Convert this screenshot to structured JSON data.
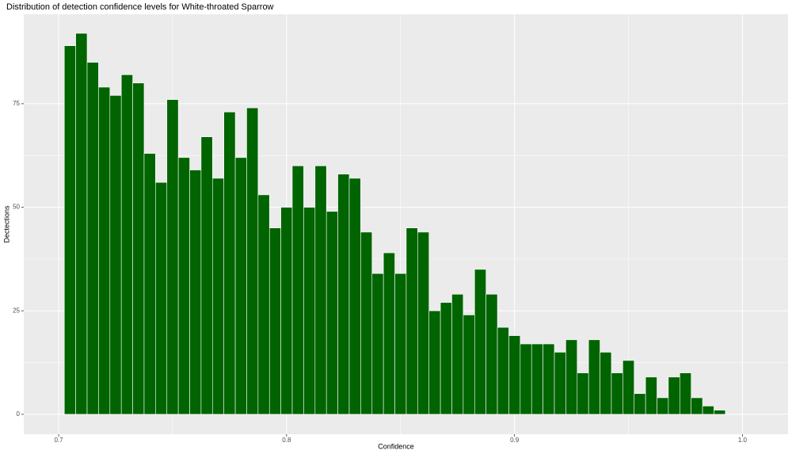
{
  "chart_data": {
    "type": "histogram",
    "title": "Distribution of detection confidence levels for White-throated Sparrow",
    "x_label": "Confidence",
    "y_label": "Dectections",
    "bins": [
      0.7025,
      0.7075,
      0.7125,
      0.7175,
      0.7225,
      0.7275,
      0.7325,
      0.7375,
      0.7425,
      0.7475,
      0.7525,
      0.7575,
      0.7625,
      0.7675,
      0.7725,
      0.7775,
      0.7825,
      0.7875,
      0.7925,
      0.7975,
      0.8025,
      0.8075,
      0.8125,
      0.8175,
      0.8225,
      0.8275,
      0.8325,
      0.8375,
      0.8425,
      0.8475,
      0.8525,
      0.8575,
      0.8625,
      0.8675,
      0.8725,
      0.8775,
      0.8825,
      0.8875,
      0.8925,
      0.8975,
      0.9025,
      0.9075,
      0.9125,
      0.9175,
      0.9225,
      0.9275,
      0.9325,
      0.9375,
      0.9425,
      0.9475,
      0.9525,
      0.9575,
      0.9625,
      0.9675,
      0.9725,
      0.9775,
      0.9825,
      0.9875,
      0.9925
    ],
    "counts": [
      89,
      92,
      85,
      79,
      77,
      82,
      80,
      63,
      56,
      76,
      62,
      59,
      67,
      57,
      73,
      62,
      74,
      53,
      45,
      50,
      60,
      50,
      60,
      49,
      58,
      57,
      44,
      34,
      39,
      34,
      45,
      44,
      25,
      27,
      29,
      24,
      35,
      29,
      21,
      19,
      17,
      17,
      17,
      15,
      18,
      10,
      18,
      15,
      10,
      13,
      5,
      9,
      4,
      9,
      10,
      4,
      2,
      1
    ],
    "color": "#006400",
    "xlim": [
      0.6847,
      1.02
    ],
    "xticks": [
      0.7,
      0.8,
      0.9,
      {
        "value": 1,
        "label": "1.0"
      }
    ],
    "ylim": [
      -4.8,
      96.6
    ],
    "yticks": [
      0,
      25,
      50,
      75
    ],
    "grid": true
  }
}
